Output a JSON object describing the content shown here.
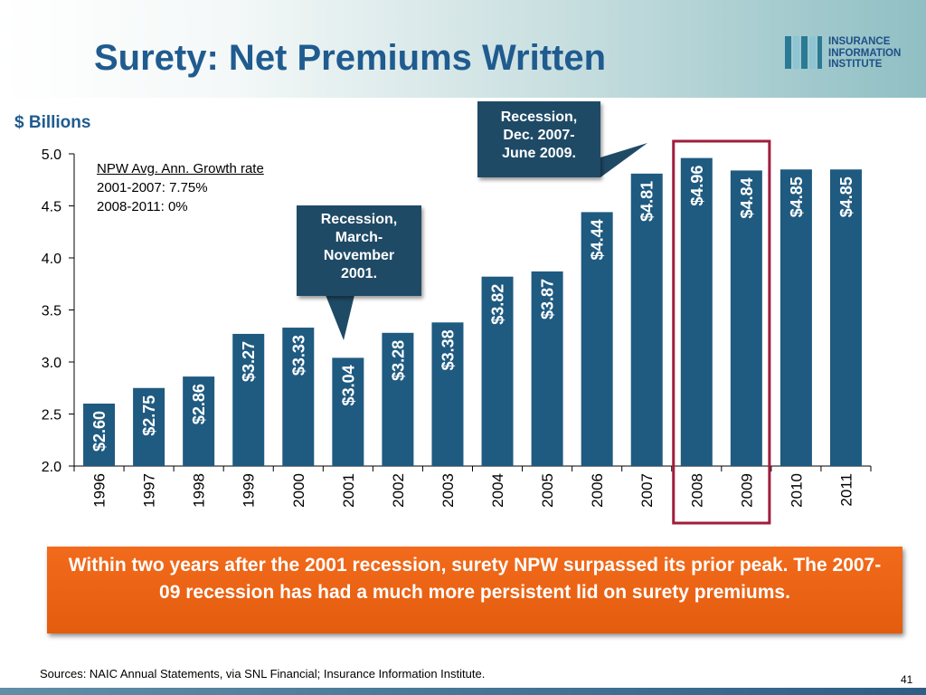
{
  "title": "Surety: Net Premiums Written",
  "logo": {
    "line1": "INSURANCE",
    "line2": "INFORMATION",
    "line3": "INSTITUTE"
  },
  "units_label": "$ Billions",
  "growth_note": {
    "heading": "NPW Avg. Ann. Growth rate",
    "line1": "2001-2007: 7.75%",
    "line2": "2008-2011: 0%"
  },
  "callouts": {
    "recession_2007": {
      "line1": "Recession,",
      "line2": "Dec. 2007-",
      "line3": "June 2009."
    },
    "recession_2001": {
      "line1": "Recession,",
      "line2": "March-",
      "line3": "November",
      "line4": "2001."
    }
  },
  "banner_text": "Within two years after the 2001 recession, surety NPW surpassed its prior peak. The 2007-09 recession has had a much more persistent lid on surety premiums.",
  "source_text": "Sources: NAIC Annual Statements, via SNL Financial; Insurance Information Institute.",
  "page_number": "41",
  "colors": {
    "bar": "#1f5a80",
    "highlight_box": "#a01c3c",
    "title": "#1f5b8f",
    "banner": "#e85f10"
  },
  "chart_data": {
    "type": "bar",
    "categories": [
      "1996",
      "1997",
      "1998",
      "1999",
      "2000",
      "2001",
      "2002",
      "2003",
      "2004",
      "2005",
      "2006",
      "2007",
      "2008",
      "2009",
      "2010",
      "2011"
    ],
    "values": [
      2.6,
      2.75,
      2.86,
      3.27,
      3.33,
      3.04,
      3.28,
      3.38,
      3.82,
      3.87,
      4.44,
      4.81,
      4.96,
      4.84,
      4.85,
      4.85
    ],
    "data_labels": [
      "$2.60",
      "$2.75",
      "$2.86",
      "$3.27",
      "$3.33",
      "$3.04",
      "$3.28",
      "$3.38",
      "$3.82",
      "$3.87",
      "$4.44",
      "$4.81",
      "$4.96",
      "$4.84",
      "$4.85",
      "$4.85"
    ],
    "ylabel": "$ Billions",
    "ylim": [
      2.0,
      5.0
    ],
    "yticks": [
      "2.0",
      "2.5",
      "3.0",
      "3.5",
      "4.0",
      "4.5",
      "5.0"
    ],
    "highlighted_categories": [
      "2008",
      "2009"
    ],
    "grid": false
  }
}
